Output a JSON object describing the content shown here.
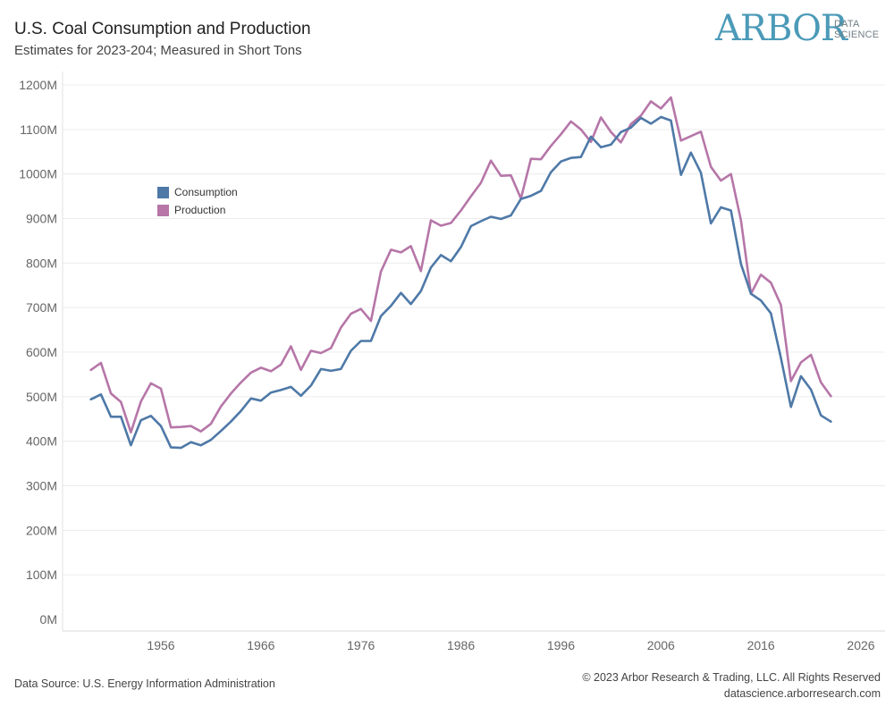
{
  "header": {
    "title": "U.S. Coal Consumption and Production",
    "subtitle": "Estimates for 2023-204; Measured in Short Tons"
  },
  "logo": {
    "name": "ARBOR",
    "line1": "DATA",
    "line2": "SCIENCE",
    "color": "#4b9ab8"
  },
  "footer": {
    "source": "Data Source: U.S. Energy Information Administration",
    "copyright": "© 2023 Arbor Research & Trading, LLC. All Rights Reserved",
    "website": "datascience.arborresearch.com"
  },
  "chart_data": {
    "type": "line",
    "title": "U.S. Coal Consumption and Production",
    "xlabel": "",
    "ylabel": "",
    "xlim": [
      1945,
      2028
    ],
    "ylim": [
      0,
      1200
    ],
    "grid": true,
    "legend_position": "upper-left",
    "x_ticks": [
      1956,
      1966,
      1976,
      1986,
      1996,
      2006,
      2016,
      2026
    ],
    "x_tick_labels": [
      "1956",
      "1966",
      "1976",
      "1986",
      "1996",
      "2006",
      "2016",
      "2026"
    ],
    "y_ticks": [
      0,
      100,
      200,
      300,
      400,
      500,
      600,
      700,
      800,
      900,
      1000,
      1100,
      1200
    ],
    "y_tick_labels": [
      "0M",
      "100M",
      "200M",
      "300M",
      "400M",
      "500M",
      "600M",
      "700M",
      "800M",
      "900M",
      "1000M",
      "1100M",
      "1200M"
    ],
    "x": [
      1949,
      1950,
      1951,
      1952,
      1953,
      1954,
      1955,
      1956,
      1957,
      1958,
      1959,
      1960,
      1961,
      1962,
      1963,
      1964,
      1965,
      1966,
      1967,
      1968,
      1969,
      1970,
      1971,
      1972,
      1973,
      1974,
      1975,
      1976,
      1977,
      1978,
      1979,
      1980,
      1981,
      1982,
      1983,
      1984,
      1985,
      1986,
      1987,
      1988,
      1989,
      1990,
      1991,
      1992,
      1993,
      1994,
      1995,
      1996,
      1997,
      1998,
      1999,
      2000,
      2001,
      2002,
      2003,
      2004,
      2005,
      2006,
      2007,
      2008,
      2009,
      2010,
      2011,
      2012,
      2013,
      2014,
      2015,
      2016,
      2017,
      2018,
      2019,
      2020,
      2021,
      2022,
      2023,
      2024
    ],
    "series": [
      {
        "name": "Consumption",
        "color": "#4e79a7",
        "values": [
          494,
          505,
          455,
          455,
          391,
          447,
          457,
          434,
          386,
          385,
          398,
          391,
          403,
          423,
          444,
          468,
          496,
          491,
          509,
          515,
          522,
          502,
          525,
          562,
          558,
          562,
          603,
          625,
          625,
          681,
          704,
          733,
          708,
          737,
          790,
          818,
          804,
          836,
          883,
          894,
          904,
          899,
          907,
          944,
          951,
          962,
          1004,
          1028,
          1036,
          1038,
          1084,
          1060,
          1066,
          1094,
          1104,
          1126,
          1113,
          1128,
          1120,
          998,
          1048,
          1003,
          889,
          925,
          918,
          798,
          731,
          716,
          687,
          587,
          477,
          546,
          516,
          458,
          444,
          null
        ]
      },
      {
        "name": "Production",
        "color": "#b676a8",
        "values": [
          560,
          576,
          507,
          488,
          420,
          489,
          530,
          518,
          431,
          432,
          434,
          422,
          439,
          478,
          507,
          532,
          554,
          565,
          557,
          572,
          613,
          560,
          603,
          598,
          609,
          655,
          686,
          697,
          670,
          781,
          830,
          824,
          838,
          782,
          896,
          884,
          890,
          918,
          950,
          980,
          1030,
          996,
          997,
          945,
          1034,
          1033,
          1063,
          1089,
          1118,
          1100,
          1072,
          1127,
          1094,
          1071,
          1112,
          1131,
          1163,
          1147,
          1172,
          1075,
          1085,
          1095,
          1016,
          985,
          1000,
          896,
          731,
          774,
          756,
          706,
          535,
          577,
          594,
          532,
          501,
          null
        ]
      }
    ]
  }
}
